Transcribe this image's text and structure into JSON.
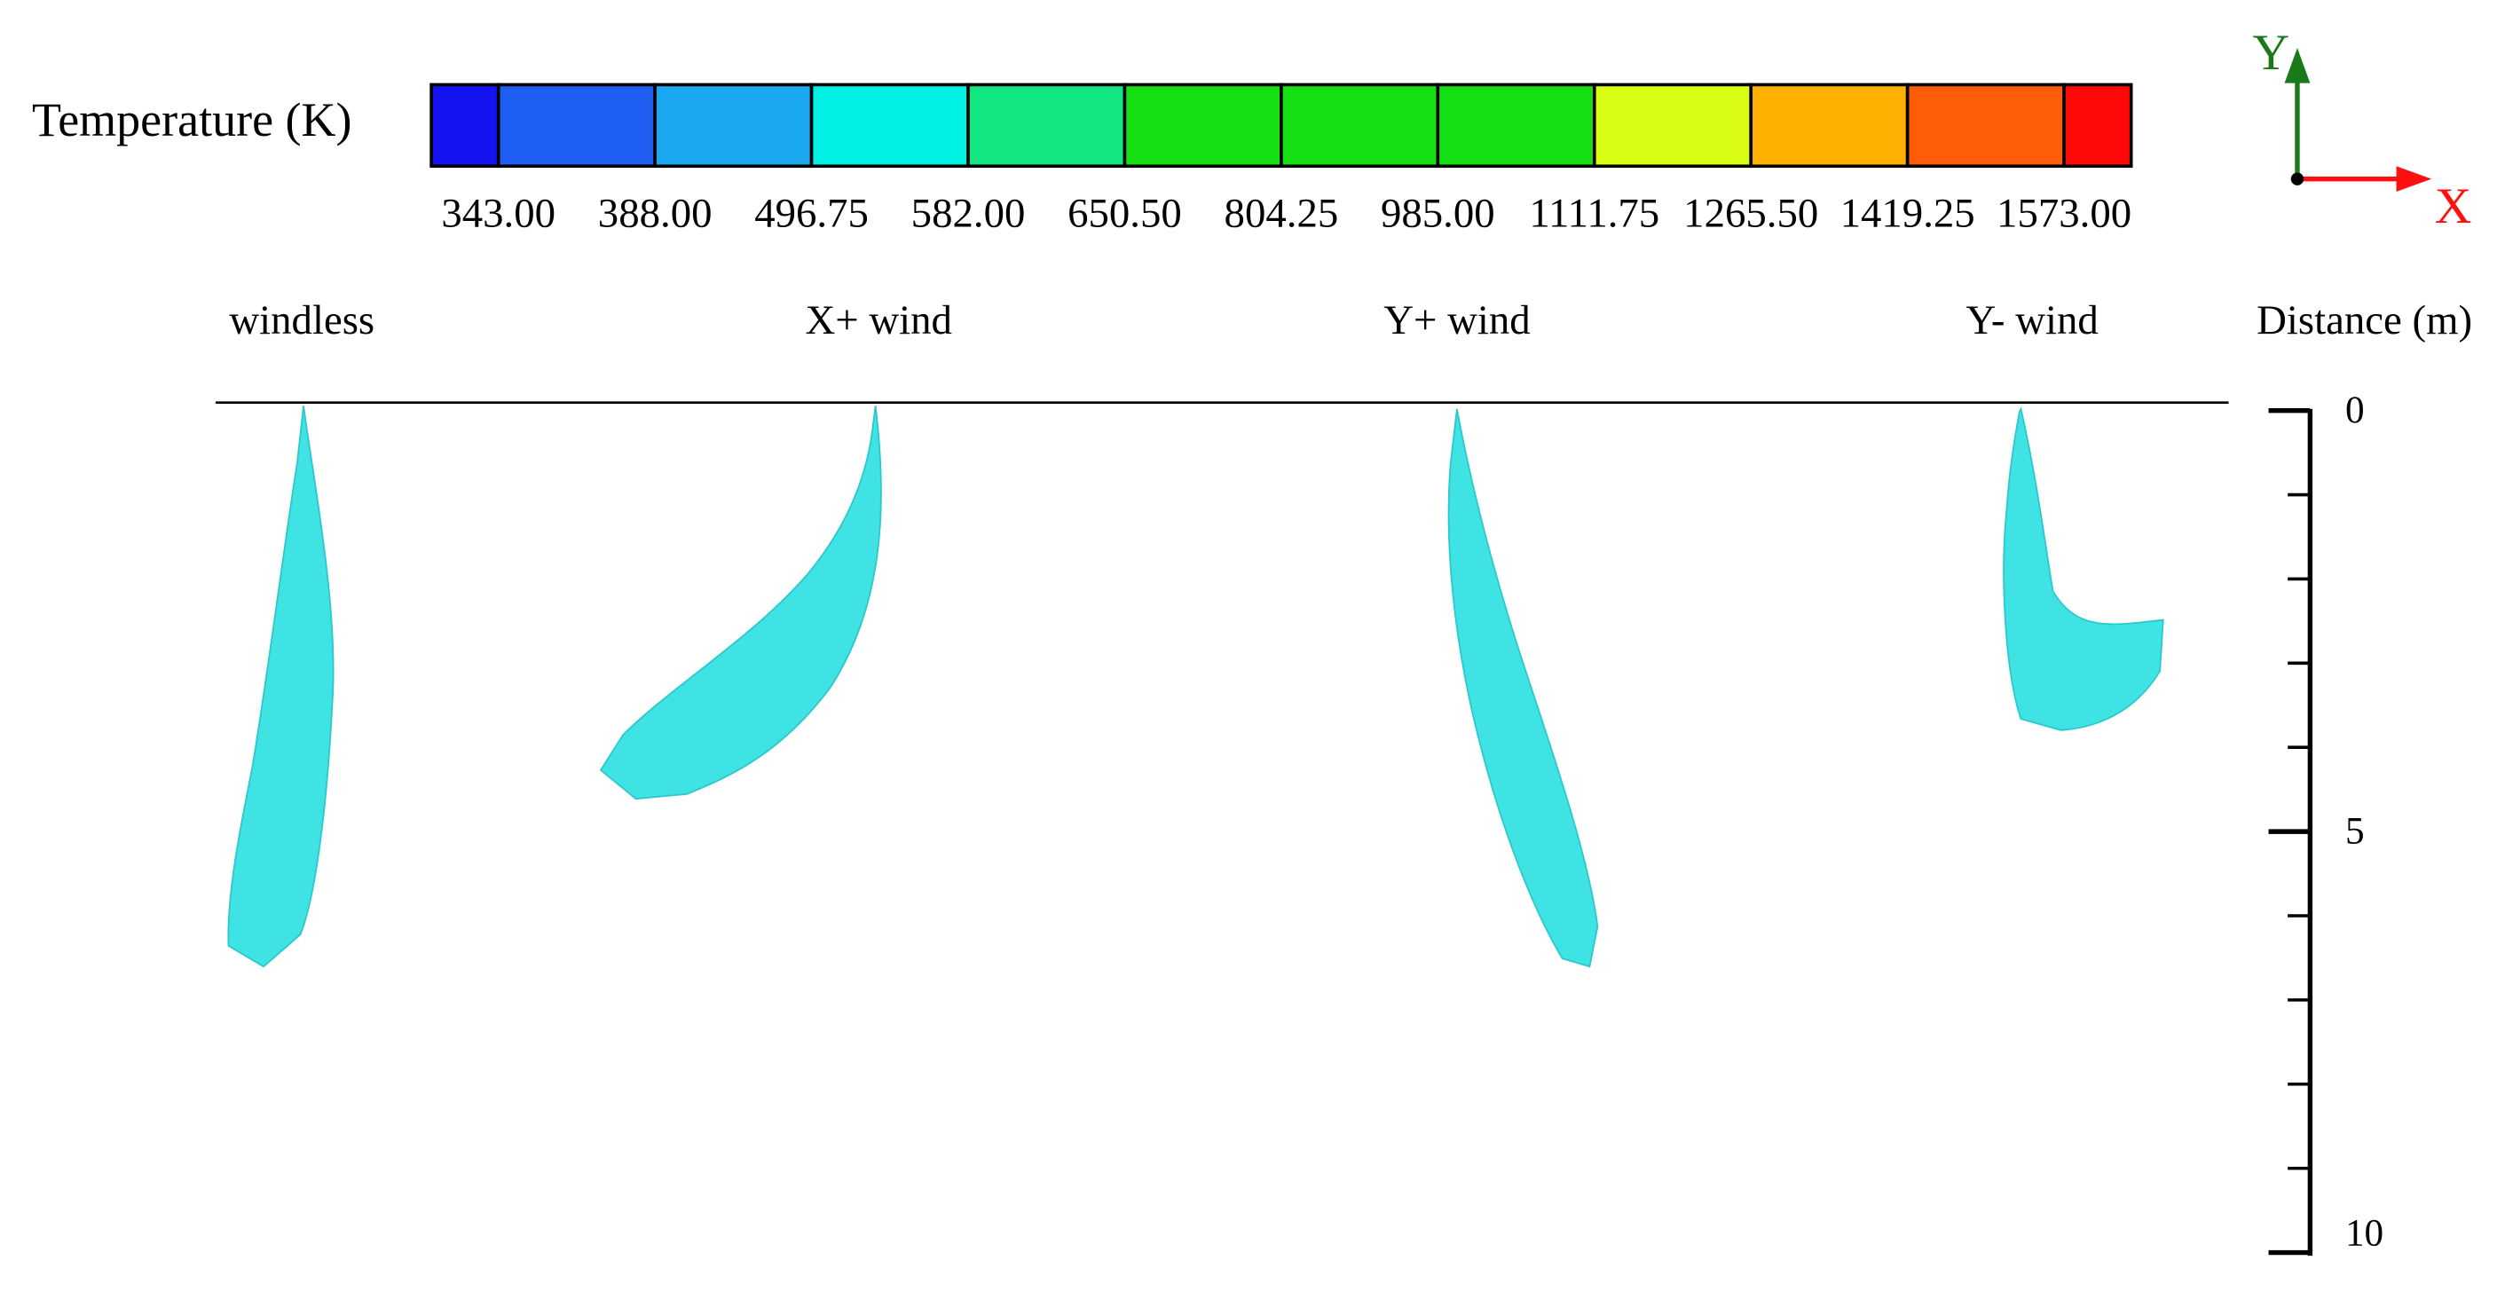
{
  "legend": {
    "title": "Temperature (K)",
    "colors": [
      "#1414f0",
      "#1e5ef2",
      "#1aa8f0",
      "#00f0e4",
      "#12e682",
      "#14e014",
      "#14e014",
      "#14e014",
      "#d8fc12",
      "#ffb000",
      "#ff5c08",
      "#ff0808"
    ],
    "labels": [
      "343.00",
      "388.00",
      "496.75",
      "582.00",
      "650.50",
      "804.25",
      "985.00",
      "1111.75",
      "1265.50",
      "1419.25",
      "1573.00"
    ]
  },
  "axes_indicator": {
    "y_label": "Y",
    "x_label": "X"
  },
  "panels": [
    {
      "label": "windless"
    },
    {
      "label": "X+ wind"
    },
    {
      "label": "Y+ wind"
    },
    {
      "label": "Y- wind"
    }
  ],
  "scale": {
    "title": "Distance (m)",
    "range": [
      0,
      10
    ],
    "ticks": [
      0,
      5,
      10
    ],
    "minor_ticks": [
      1,
      2,
      3,
      4,
      6,
      7,
      8,
      9
    ]
  }
}
